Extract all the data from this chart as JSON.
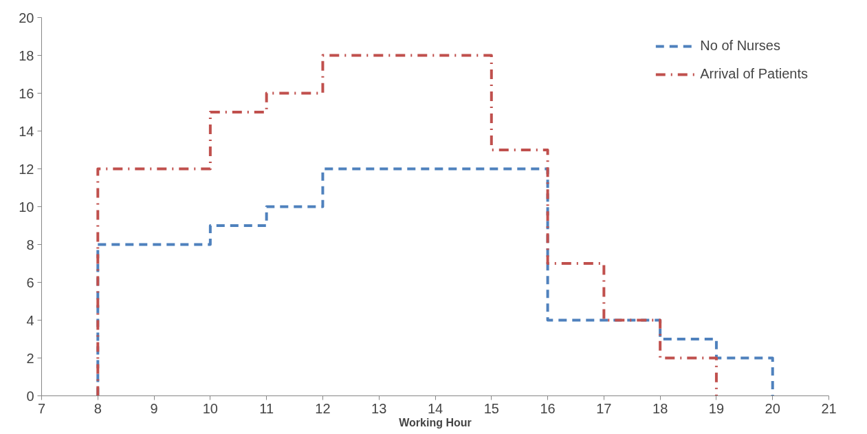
{
  "chart_data": {
    "type": "step",
    "xlabel": "Working Hour",
    "series": [
      {
        "name": "No of Nurses",
        "color": "#4f81bd",
        "line_style": "dashed",
        "x": [
          8,
          8,
          10,
          11,
          12,
          16,
          18,
          19,
          20
        ],
        "values": [
          0,
          8,
          9,
          10,
          12,
          4,
          3,
          2,
          0
        ]
      },
      {
        "name": "Arrival of Patients",
        "color": "#c0504d",
        "line_style": "dashdot",
        "x": [
          8,
          8,
          10,
          11,
          12,
          15,
          16,
          17,
          18,
          19
        ],
        "values": [
          0,
          12,
          15,
          16,
          18,
          13,
          7,
          4,
          2,
          0
        ]
      }
    ],
    "xlim": [
      7,
      21
    ],
    "ylim": [
      0,
      20
    ],
    "xticks": [
      7,
      8,
      9,
      10,
      11,
      12,
      13,
      14,
      15,
      16,
      17,
      18,
      19,
      20,
      21
    ],
    "yticks": [
      0,
      2,
      4,
      6,
      8,
      10,
      12,
      14,
      16,
      18,
      20
    ],
    "grid": false,
    "legend": "top right"
  }
}
